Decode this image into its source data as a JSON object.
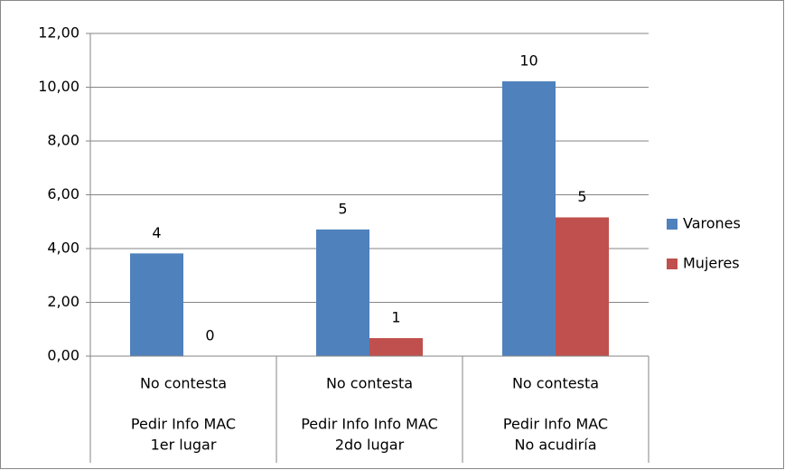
{
  "chart_data": {
    "type": "bar",
    "categories": [
      "No contesta",
      "No contesta",
      "No contesta"
    ],
    "groups": [
      [
        "Pedir Info MAC",
        "1er lugar"
      ],
      [
        "Pedir Info Info MAC",
        "2do lugar"
      ],
      [
        "Pedir Info MAC",
        "No acudiría"
      ]
    ],
    "series": [
      {
        "name": "Varones",
        "color": "#4f81bd",
        "values": [
          3.82,
          4.71,
          10.22
        ],
        "value_labels": [
          "4",
          "5",
          "10"
        ]
      },
      {
        "name": "Mujeres",
        "color": "#c0504d",
        "values": [
          0,
          0.67,
          5.16
        ],
        "value_labels": [
          "0",
          "1",
          "5"
        ]
      }
    ],
    "ylim": [
      0,
      12
    ],
    "yticks": [
      {
        "value": 0,
        "label": "0,00"
      },
      {
        "value": 2,
        "label": "2,00"
      },
      {
        "value": 4,
        "label": "4,00"
      },
      {
        "value": 6,
        "label": "6,00"
      },
      {
        "value": 8,
        "label": "8,00"
      },
      {
        "value": 10,
        "label": "10,00"
      },
      {
        "value": 12,
        "label": "12,00"
      }
    ],
    "grid": true,
    "legend": "right"
  }
}
